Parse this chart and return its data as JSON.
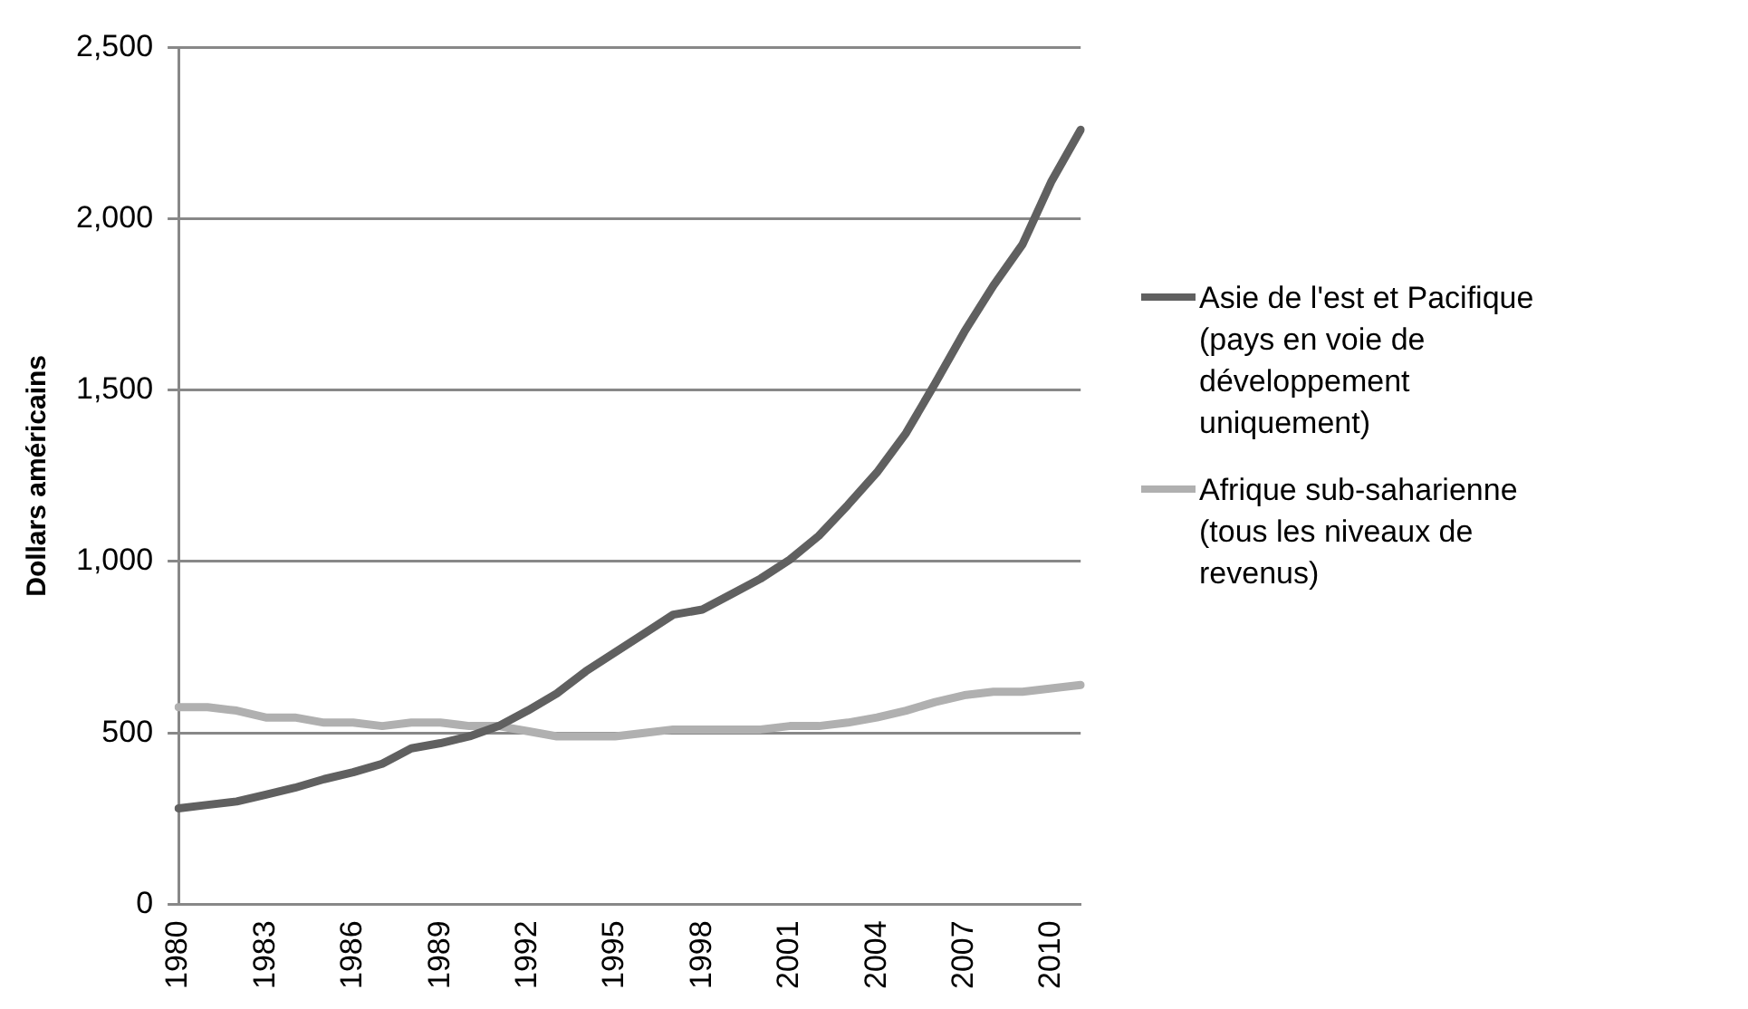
{
  "chart_data": {
    "type": "line",
    "ylabel": "Dollars américains",
    "categories": [
      "1980",
      null,
      null,
      "1983",
      null,
      null,
      "1986",
      null,
      null,
      "1989",
      null,
      null,
      "1992",
      null,
      null,
      "1995",
      null,
      null,
      "1998",
      null,
      null,
      "2001",
      null,
      null,
      "2004",
      null,
      null,
      "2007",
      null,
      null,
      "2010",
      null
    ],
    "series": [
      {
        "name": "Asie de l'est et Pacifique (pays en voie de développement uniquement)",
        "color": "#606060",
        "values": [
          280,
          290,
          300,
          320,
          340,
          365,
          385,
          410,
          455,
          470,
          490,
          520,
          565,
          615,
          680,
          735,
          790,
          845,
          860,
          905,
          950,
          1005,
          1075,
          1165,
          1260,
          1375,
          1520,
          1670,
          1805,
          1925,
          2110,
          2260
        ]
      },
      {
        "name": "Afrique sub-saharienne (tous les niveaux de revenus)",
        "color": "#b0b0b0",
        "values": [
          575,
          575,
          565,
          545,
          545,
          530,
          530,
          520,
          530,
          530,
          520,
          520,
          505,
          490,
          490,
          490,
          500,
          510,
          510,
          510,
          510,
          520,
          520,
          530,
          545,
          565,
          590,
          610,
          620,
          620,
          630,
          640
        ]
      }
    ],
    "ylim": [
      0,
      2500
    ],
    "yticks": [
      {
        "value": 0,
        "label": "0"
      },
      {
        "value": 500,
        "label": "500"
      },
      {
        "value": 1000,
        "label": "1,000"
      },
      {
        "value": 1500,
        "label": "1,500"
      },
      {
        "value": 2000,
        "label": "2,000"
      },
      {
        "value": 2500,
        "label": "2,500"
      }
    ],
    "grid": "y",
    "legend": "right",
    "marker": "none",
    "line_style": "solid"
  }
}
